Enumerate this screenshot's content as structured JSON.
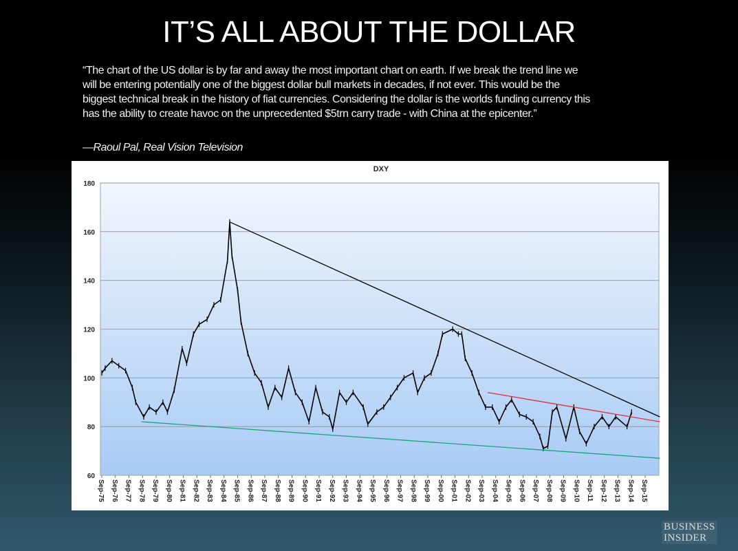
{
  "title": "IT’S ALL ABOUT THE DOLLAR",
  "quote_lines": [
    "“The chart of the US dollar is by far and away the most important chart on earth. If we break the trend line  we",
    "will be entering potentially one of the biggest dollar bull markets in decades, if not ever. This would be the",
    "biggest technical break in the history of fiat currencies. Considering the dollar is the worlds funding currency this",
    "has the ability to create havoc on the unprecedented $5trn carry trade - with China at the epicenter.”"
  ],
  "attribution": "—Raoul Pal, Real Vision Television",
  "logo": {
    "line1": "BUSINESS",
    "line2": "INSIDER"
  },
  "chart_data": {
    "type": "line",
    "title": "DXY",
    "xlabel": "",
    "ylabel": "",
    "ylim": [
      60,
      180
    ],
    "yticks": [
      60,
      80,
      100,
      120,
      140,
      160,
      180
    ],
    "grid": true,
    "legend": "none",
    "xtick_labels": [
      "Sep-75",
      "Sep-76",
      "Sep-77",
      "Sep-78",
      "Sep-79",
      "Sep-80",
      "Sep-81",
      "Sep-82",
      "Sep-83",
      "Sep-84",
      "Sep-85",
      "Sep-86",
      "Sep-87",
      "Sep-88",
      "Sep-89",
      "Sep-90",
      "Sep-91",
      "Sep-92",
      "Sep-93",
      "Sep-94",
      "Sep-95",
      "Sep-96",
      "Sep-97",
      "Sep-98",
      "Sep-99",
      "Sep-00",
      "Sep-01",
      "Sep-02",
      "Sep-03",
      "Sep-04",
      "Sep-05",
      "Sep-06",
      "Sep-07",
      "Sep-08",
      "Sep-09",
      "Sep-10",
      "Sep-11",
      "Sep-12",
      "Sep-13",
      "Sep-14",
      "Sep-15"
    ],
    "series": [
      {
        "color": "#000000",
        "points": [
          [
            "1975-09",
            102
          ],
          [
            "1975-12",
            104
          ],
          [
            "1976-06",
            107
          ],
          [
            "1976-12",
            105
          ],
          [
            "1977-06",
            103
          ],
          [
            "1977-12",
            96
          ],
          [
            "1978-03",
            90
          ],
          [
            "1978-10",
            84
          ],
          [
            "1979-03",
            88
          ],
          [
            "1979-09",
            86
          ],
          [
            "1980-03",
            90
          ],
          [
            "1980-07",
            86
          ],
          [
            "1981-01",
            95
          ],
          [
            "1981-08",
            112
          ],
          [
            "1981-12",
            106
          ],
          [
            "1982-06",
            118
          ],
          [
            "1982-11",
            122
          ],
          [
            "1983-06",
            124
          ],
          [
            "1983-12",
            130
          ],
          [
            "1984-06",
            132
          ],
          [
            "1984-12",
            148
          ],
          [
            "1985-02",
            164
          ],
          [
            "1985-04",
            150
          ],
          [
            "1985-09",
            136
          ],
          [
            "1985-12",
            123
          ],
          [
            "1986-06",
            110
          ],
          [
            "1986-12",
            102
          ],
          [
            "1987-06",
            98
          ],
          [
            "1987-12",
            88
          ],
          [
            "1988-06",
            96
          ],
          [
            "1988-12",
            92
          ],
          [
            "1989-06",
            104
          ],
          [
            "1989-12",
            94
          ],
          [
            "1990-06",
            90
          ],
          [
            "1990-12",
            82
          ],
          [
            "1991-06",
            96
          ],
          [
            "1991-12",
            86
          ],
          [
            "1992-06",
            84
          ],
          [
            "1992-09",
            79
          ],
          [
            "1993-03",
            94
          ],
          [
            "1993-09",
            90
          ],
          [
            "1994-03",
            94
          ],
          [
            "1994-12",
            88
          ],
          [
            "1995-04",
            81
          ],
          [
            "1995-12",
            86
          ],
          [
            "1996-06",
            88
          ],
          [
            "1996-12",
            92
          ],
          [
            "1997-06",
            96
          ],
          [
            "1997-12",
            100
          ],
          [
            "1998-08",
            102
          ],
          [
            "1998-12",
            94
          ],
          [
            "1999-06",
            100
          ],
          [
            "1999-12",
            102
          ],
          [
            "2000-06",
            110
          ],
          [
            "2000-10",
            118
          ],
          [
            "2001-07",
            120
          ],
          [
            "2001-12",
            118
          ],
          [
            "2002-03",
            118
          ],
          [
            "2002-06",
            108
          ],
          [
            "2002-12",
            102
          ],
          [
            "2003-06",
            94
          ],
          [
            "2003-12",
            88
          ],
          [
            "2004-06",
            88
          ],
          [
            "2004-12",
            82
          ],
          [
            "2005-06",
            88
          ],
          [
            "2005-11",
            91
          ],
          [
            "2006-06",
            85
          ],
          [
            "2006-12",
            84
          ],
          [
            "2007-06",
            82
          ],
          [
            "2007-12",
            76
          ],
          [
            "2008-03",
            71
          ],
          [
            "2008-07",
            72
          ],
          [
            "2008-11",
            86
          ],
          [
            "2009-03",
            88
          ],
          [
            "2009-11",
            75
          ],
          [
            "2010-06",
            88
          ],
          [
            "2010-11",
            78
          ],
          [
            "2011-05",
            73
          ],
          [
            "2011-12",
            80
          ],
          [
            "2012-07",
            84
          ],
          [
            "2013-01",
            80
          ],
          [
            "2013-07",
            84
          ],
          [
            "2014-05",
            80
          ],
          [
            "2014-09",
            86
          ]
        ]
      }
    ],
    "trend_lines": [
      {
        "color": "#000000",
        "from": [
          "1985-02",
          164
        ],
        "to": [
          "2016-10",
          84
        ]
      },
      {
        "color": "#e0303a",
        "from": [
          "2004-02",
          94
        ],
        "to": [
          "2016-10",
          82
        ]
      },
      {
        "color": "#1aa37a",
        "from": [
          "1978-08",
          82
        ],
        "to": [
          "2016-10",
          67
        ]
      }
    ]
  }
}
